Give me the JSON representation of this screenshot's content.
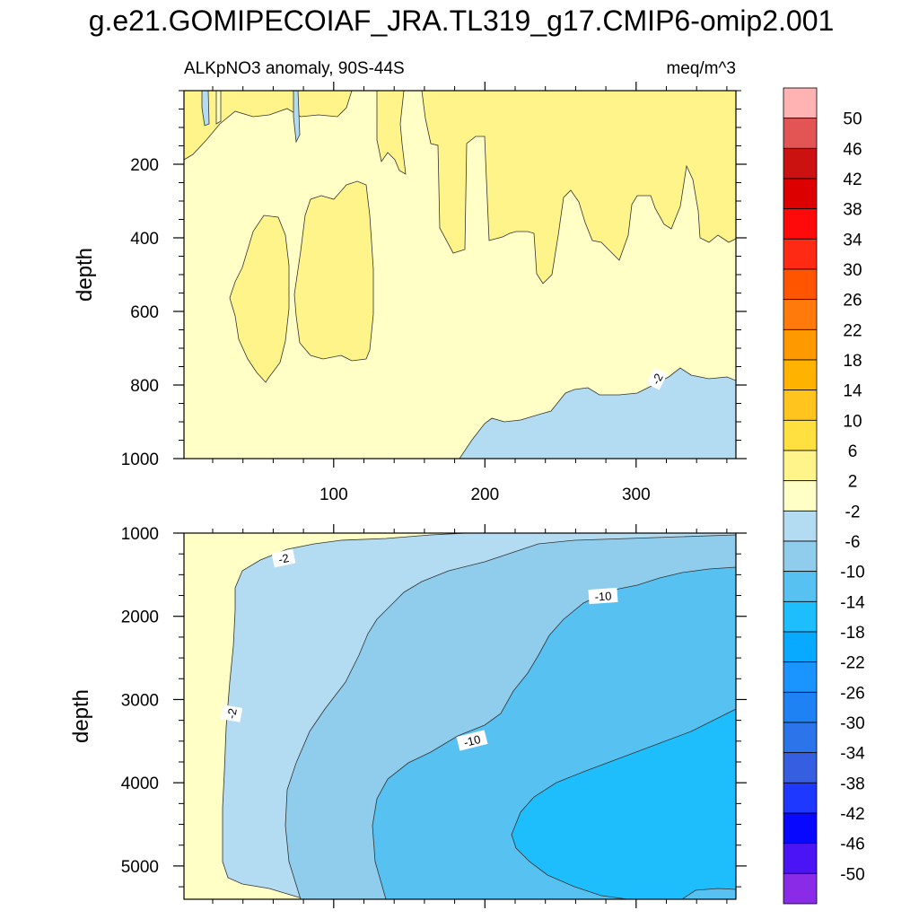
{
  "title": "g.e21.GOMIPECOIAF_JRA.TL319_g17.CMIP6-omip2.001",
  "subtitle_left": "ALKpNO3 anomaly, 90S-44S",
  "subtitle_right": "meq/m^3",
  "chart_data": [
    {
      "type": "heatmap",
      "panel": "upper",
      "ylabel": "depth",
      "y_reversed": true,
      "xlim": [
        1,
        366
      ],
      "ylim": [
        1000,
        0
      ],
      "x_ticks": [
        100,
        200,
        300
      ],
      "y_ticks": [
        200,
        400,
        600,
        800,
        1000
      ],
      "contour_labels": [
        "-2"
      ],
      "regions": [
        {
          "level": "2 to 6",
          "description": "upper ~450 m, broken into columns"
        },
        {
          "level": "-2 to 2",
          "description": "background"
        },
        {
          "level": "-6 to -2",
          "description": "bottom right, below ~800 m"
        }
      ]
    },
    {
      "type": "heatmap",
      "panel": "lower",
      "ylabel": "depth",
      "y_reversed": true,
      "xlim": [
        1,
        366
      ],
      "ylim": [
        5400,
        1000
      ],
      "x_ticks": [
        100,
        200,
        300
      ],
      "y_ticks": [
        1000,
        2000,
        3000,
        4000,
        5000
      ],
      "contour_labels": [
        "-2",
        "-2",
        "-10",
        "-10"
      ],
      "regions": [
        {
          "level": "-2 to 2",
          "description": "left edge and top"
        },
        {
          "level": "-6 to -2"
        },
        {
          "level": "-10 to -6"
        },
        {
          "level": "-14 to -10"
        },
        {
          "level": "-18 to -14",
          "description": "deep right, ~3100-5000 m"
        }
      ]
    }
  ],
  "colorbar": {
    "labels": [
      "50",
      "46",
      "42",
      "38",
      "34",
      "30",
      "26",
      "22",
      "18",
      "14",
      "10",
      "6",
      "2",
      "-2",
      "-6",
      "-10",
      "-14",
      "-18",
      "-22",
      "-26",
      "-30",
      "-34",
      "-38",
      "-42",
      "-46",
      "-50"
    ],
    "colors": [
      "#ffb3b3",
      "#e35555",
      "#cc1111",
      "#dd0000",
      "#ff0a0a",
      "#ff2a14",
      "#ff5500",
      "#ff7a0a",
      "#ff9900",
      "#ffb300",
      "#ffc41e",
      "#ffe040",
      "#fff48a",
      "#ffffc6",
      "#b3dcf2",
      "#90cdec",
      "#57c2f2",
      "#1ebdfc",
      "#08aaff",
      "#1a95ff",
      "#1e82f5",
      "#2c74ea",
      "#355fe0",
      "#1f38ff",
      "#0808ff",
      "#4b14f5",
      "#8a2be8"
    ]
  },
  "colors": {
    "c_m18": "#1ebdfc",
    "c_m14": "#57c2f2",
    "c_m10": "#90cdec",
    "c_m6": "#b3dcf2",
    "c_m2": "#ffffc6",
    "c_p2": "#fff48a"
  }
}
